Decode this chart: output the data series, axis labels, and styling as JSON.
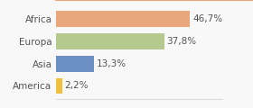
{
  "categories": [
    "Africa",
    "Europa",
    "Asia",
    "America"
  ],
  "values": [
    46.7,
    37.8,
    13.3,
    2.2
  ],
  "labels": [
    "46,7%",
    "37,8%",
    "13,3%",
    "2,2%"
  ],
  "bar_colors": [
    "#e8a87c",
    "#b5c98e",
    "#6b8fc2",
    "#f0c040"
  ],
  "background_color": "#f8f8f8",
  "xlim": [
    0,
    58
  ],
  "bar_height": 0.72,
  "label_fontsize": 7.5,
  "category_fontsize": 7.5,
  "top_line_color": "#e8a87c",
  "spine_color": "#dddddd"
}
